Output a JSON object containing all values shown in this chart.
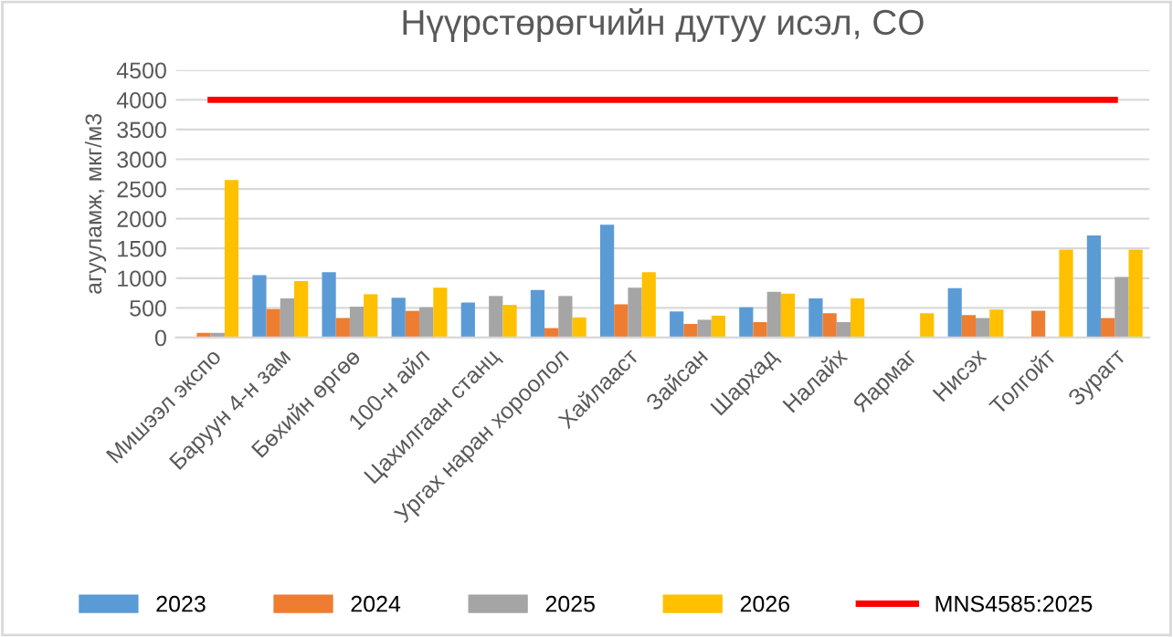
{
  "chart_data": {
    "type": "bar",
    "title": "Нүүрстөрөгчийн дутуу исэл, CO",
    "ylabel": "агууламж, мкг/м3",
    "categories": [
      "Мишээл экспо",
      "Баруун 4-н зам",
      "Бөхийн өргөө",
      "100-н айл",
      "Цахилгаан станц",
      "Ургах наран хороолол",
      "Хайлааст",
      "Зайсан",
      "Шархад",
      "Налайх",
      "Яармаг",
      "Нисэх",
      "Толгойт",
      "Зурагт"
    ],
    "series": [
      {
        "name": "2023",
        "color": "#5b9bd5",
        "values": [
          null,
          1050,
          1100,
          670,
          590,
          800,
          1900,
          440,
          510,
          660,
          null,
          830,
          null,
          1720
        ]
      },
      {
        "name": "2024",
        "color": "#ed7d31",
        "values": [
          80,
          480,
          330,
          450,
          null,
          160,
          560,
          230,
          260,
          410,
          null,
          380,
          450,
          330
        ]
      },
      {
        "name": "2025",
        "color": "#a5a5a5",
        "values": [
          80,
          660,
          520,
          510,
          700,
          700,
          840,
          300,
          770,
          260,
          null,
          330,
          null,
          1020
        ]
      },
      {
        "name": "2026",
        "color": "#ffc000",
        "values": [
          2650,
          950,
          730,
          840,
          550,
          340,
          1100,
          370,
          740,
          660,
          410,
          470,
          1480,
          1480
        ]
      },
      {
        "name": "MNS4585:2025",
        "color": "#ff0000",
        "type": "line",
        "values": [
          4000,
          4000,
          4000,
          4000,
          4000,
          4000,
          4000,
          4000,
          4000,
          4000,
          4000,
          4000,
          4000,
          4000
        ]
      }
    ],
    "ylim": [
      0,
      4500
    ],
    "yticks": [
      0,
      500,
      1000,
      1500,
      2000,
      2500,
      3000,
      3500,
      4000,
      4500
    ],
    "grid": "y",
    "legend": "bottom"
  }
}
